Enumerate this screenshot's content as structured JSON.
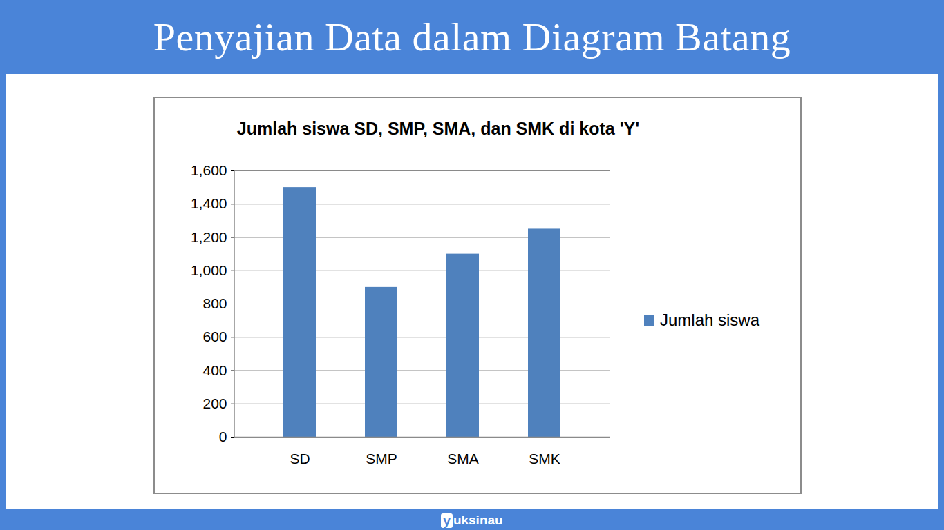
{
  "page": {
    "heading": "Penyajian Data dalam Diagram Batang",
    "footer": "yuksinau"
  },
  "chart_data": {
    "type": "bar",
    "title": "Jumlah siswa SD, SMP, SMA, dan SMK di kota 'Y'",
    "categories": [
      "SD",
      "SMP",
      "SMA",
      "SMK"
    ],
    "series": [
      {
        "name": "Jumlah siswa",
        "color": "#4f81bd",
        "values": [
          1500,
          900,
          1100,
          1250
        ]
      }
    ],
    "ylim": [
      0,
      1600
    ],
    "yticks": [
      0,
      200,
      400,
      600,
      800,
      1000,
      1200,
      1400,
      1600
    ],
    "grid": true,
    "legend": "right"
  }
}
